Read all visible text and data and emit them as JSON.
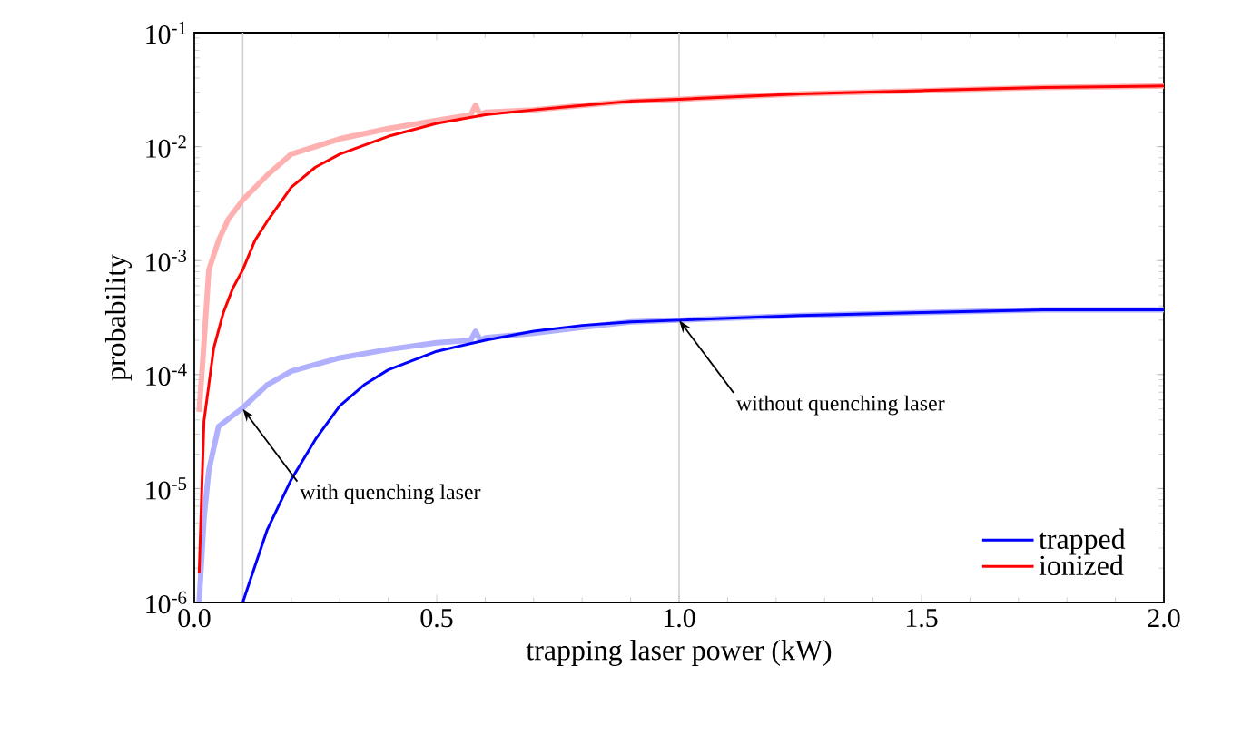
{
  "chart_data": {
    "type": "line",
    "xlabel": "trapping laser power (kW)",
    "ylabel": "probability",
    "log": "y",
    "xlim": [
      0,
      2.0
    ],
    "ylim": [
      1e-06,
      0.1
    ],
    "xticks": [
      {
        "value": 0,
        "label": "0.0"
      },
      {
        "value": 0.5,
        "label": "0.5"
      },
      {
        "value": 1.0,
        "label": "1.0"
      },
      {
        "value": 1.5,
        "label": "1.5"
      },
      {
        "value": 2.0,
        "label": "2.0"
      }
    ],
    "yticks": [
      {
        "value": 1e-06,
        "label": "10$^{-6}$"
      },
      {
        "value": 1e-05,
        "label": "10$^{-5}$"
      },
      {
        "value": 0.0001,
        "label": "10$^{-4}$"
      },
      {
        "value": 0.001,
        "label": "10$^{-3}$"
      },
      {
        "value": 0.01,
        "label": "10$^{-2}$"
      },
      {
        "value": 0.1,
        "label": "10$^{-1}$"
      }
    ],
    "series": [
      {
        "color": "#ffb0b0",
        "x": [
          0.01,
          0.02,
          0.03,
          0.05,
          0.07,
          0.1,
          0.15,
          0.2,
          0.3,
          0.4,
          0.5,
          0.57,
          0.58,
          0.59,
          0.6,
          0.7,
          0.8,
          0.9,
          1.0,
          1.25,
          1.5,
          1.75,
          2.0
        ],
        "values": [
          4.7e-05,
          0.00019,
          0.00083,
          0.0015,
          0.0023,
          0.0034,
          0.0056,
          0.0086,
          0.0117,
          0.0144,
          0.017,
          0.019,
          0.023,
          0.019,
          0.02,
          0.021,
          0.023,
          0.025,
          0.026,
          0.029,
          0.031,
          0.033,
          0.034
        ]
      },
      {
        "color": "#b0b0ff",
        "x": [
          0.01,
          0.02,
          0.03,
          0.05,
          0.1,
          0.15,
          0.2,
          0.3,
          0.4,
          0.5,
          0.57,
          0.58,
          0.59,
          0.6,
          0.7,
          0.8,
          0.9,
          1.0,
          1.25,
          1.5,
          1.75,
          2.0
        ],
        "values": [
          1e-06,
          5.5e-06,
          1.45e-05,
          3.5e-05,
          5.1e-05,
          8.1e-05,
          0.000107,
          0.00014,
          0.000166,
          0.00019,
          0.0002,
          0.00024,
          0.0002,
          0.00021,
          0.00023,
          0.00026,
          0.00029,
          0.0003,
          0.00033,
          0.00035,
          0.00037,
          0.00037
        ]
      },
      {
        "name": "trapped",
        "color": "#0000ff",
        "x": [
          0.1,
          0.12,
          0.15,
          0.2,
          0.25,
          0.3,
          0.35,
          0.4,
          0.5,
          0.6,
          0.7,
          0.8,
          0.9,
          1.0,
          1.25,
          1.5,
          1.75,
          2.0
        ],
        "values": [
          1e-06,
          1.8e-06,
          4.3e-06,
          1.2e-05,
          2.7e-05,
          5.3e-05,
          8.1e-05,
          0.00011,
          0.00016,
          0.0002,
          0.00024,
          0.00027,
          0.00029,
          0.0003,
          0.00033,
          0.00035,
          0.00037,
          0.00037
        ]
      },
      {
        "name": "ionized",
        "color": "#ff0000",
        "x": [
          0.01,
          0.02,
          0.04,
          0.06,
          0.08,
          0.1,
          0.125,
          0.15,
          0.2,
          0.25,
          0.3,
          0.4,
          0.5,
          0.6,
          0.7,
          0.8,
          0.9,
          1.0,
          1.25,
          1.5,
          1.75,
          2.0
        ],
        "values": [
          1.8e-06,
          3.9e-05,
          0.00017,
          0.00035,
          0.00058,
          0.00083,
          0.0015,
          0.0022,
          0.0044,
          0.0066,
          0.0086,
          0.0123,
          0.016,
          0.019,
          0.021,
          0.023,
          0.025,
          0.026,
          0.029,
          0.031,
          0.033,
          0.034
        ]
      }
    ],
    "ref_lines": [
      {
        "axis": "x",
        "value": 0.1,
        "color": "#d0d0d0"
      },
      {
        "axis": "x",
        "value": 1.0,
        "color": "#d0d0d0"
      }
    ],
    "annotations": [
      {
        "text": "with quenching laser",
        "x": 0.1,
        "y": 5e-05
      },
      {
        "text": "without quenching laser",
        "x": 1.0,
        "y": 0.0003
      }
    ],
    "legend": "bottom right",
    "grid": false,
    "marker": "none",
    "line_style": "solid"
  }
}
